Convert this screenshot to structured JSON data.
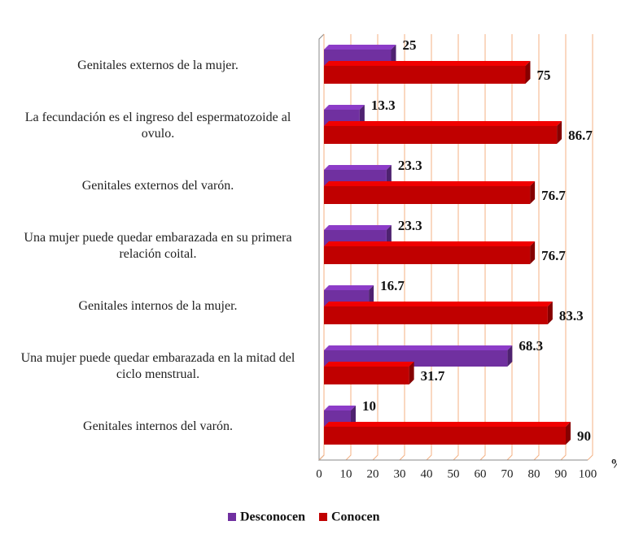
{
  "chart_data": {
    "type": "bar",
    "orientation": "horizontal",
    "x_label": "%",
    "categories": [
      "Genitales externos de la mujer.",
      "La fecundación es el ingreso del espermatozoide al ovulo.",
      "Genitales externos del varón.",
      "Una mujer puede quedar embarazada en su primera relación coital.",
      "Genitales internos de la mujer.",
      "Una mujer puede quedar embarazada en la mitad del ciclo menstrual.",
      "Genitales internos del varón."
    ],
    "series": [
      {
        "name": "Desconocen",
        "color": "#7030a0",
        "values": [
          25,
          13.3,
          23.3,
          23.3,
          16.7,
          68.3,
          10
        ]
      },
      {
        "name": "Conocen",
        "color": "#c00000",
        "values": [
          75,
          86.7,
          76.7,
          76.7,
          83.3,
          31.7,
          90
        ]
      }
    ],
    "xlim": [
      0,
      100
    ],
    "xticks": [
      0,
      10,
      20,
      30,
      40,
      50,
      60,
      70,
      80,
      90,
      100
    ],
    "grid": true,
    "legend": "bottom"
  }
}
